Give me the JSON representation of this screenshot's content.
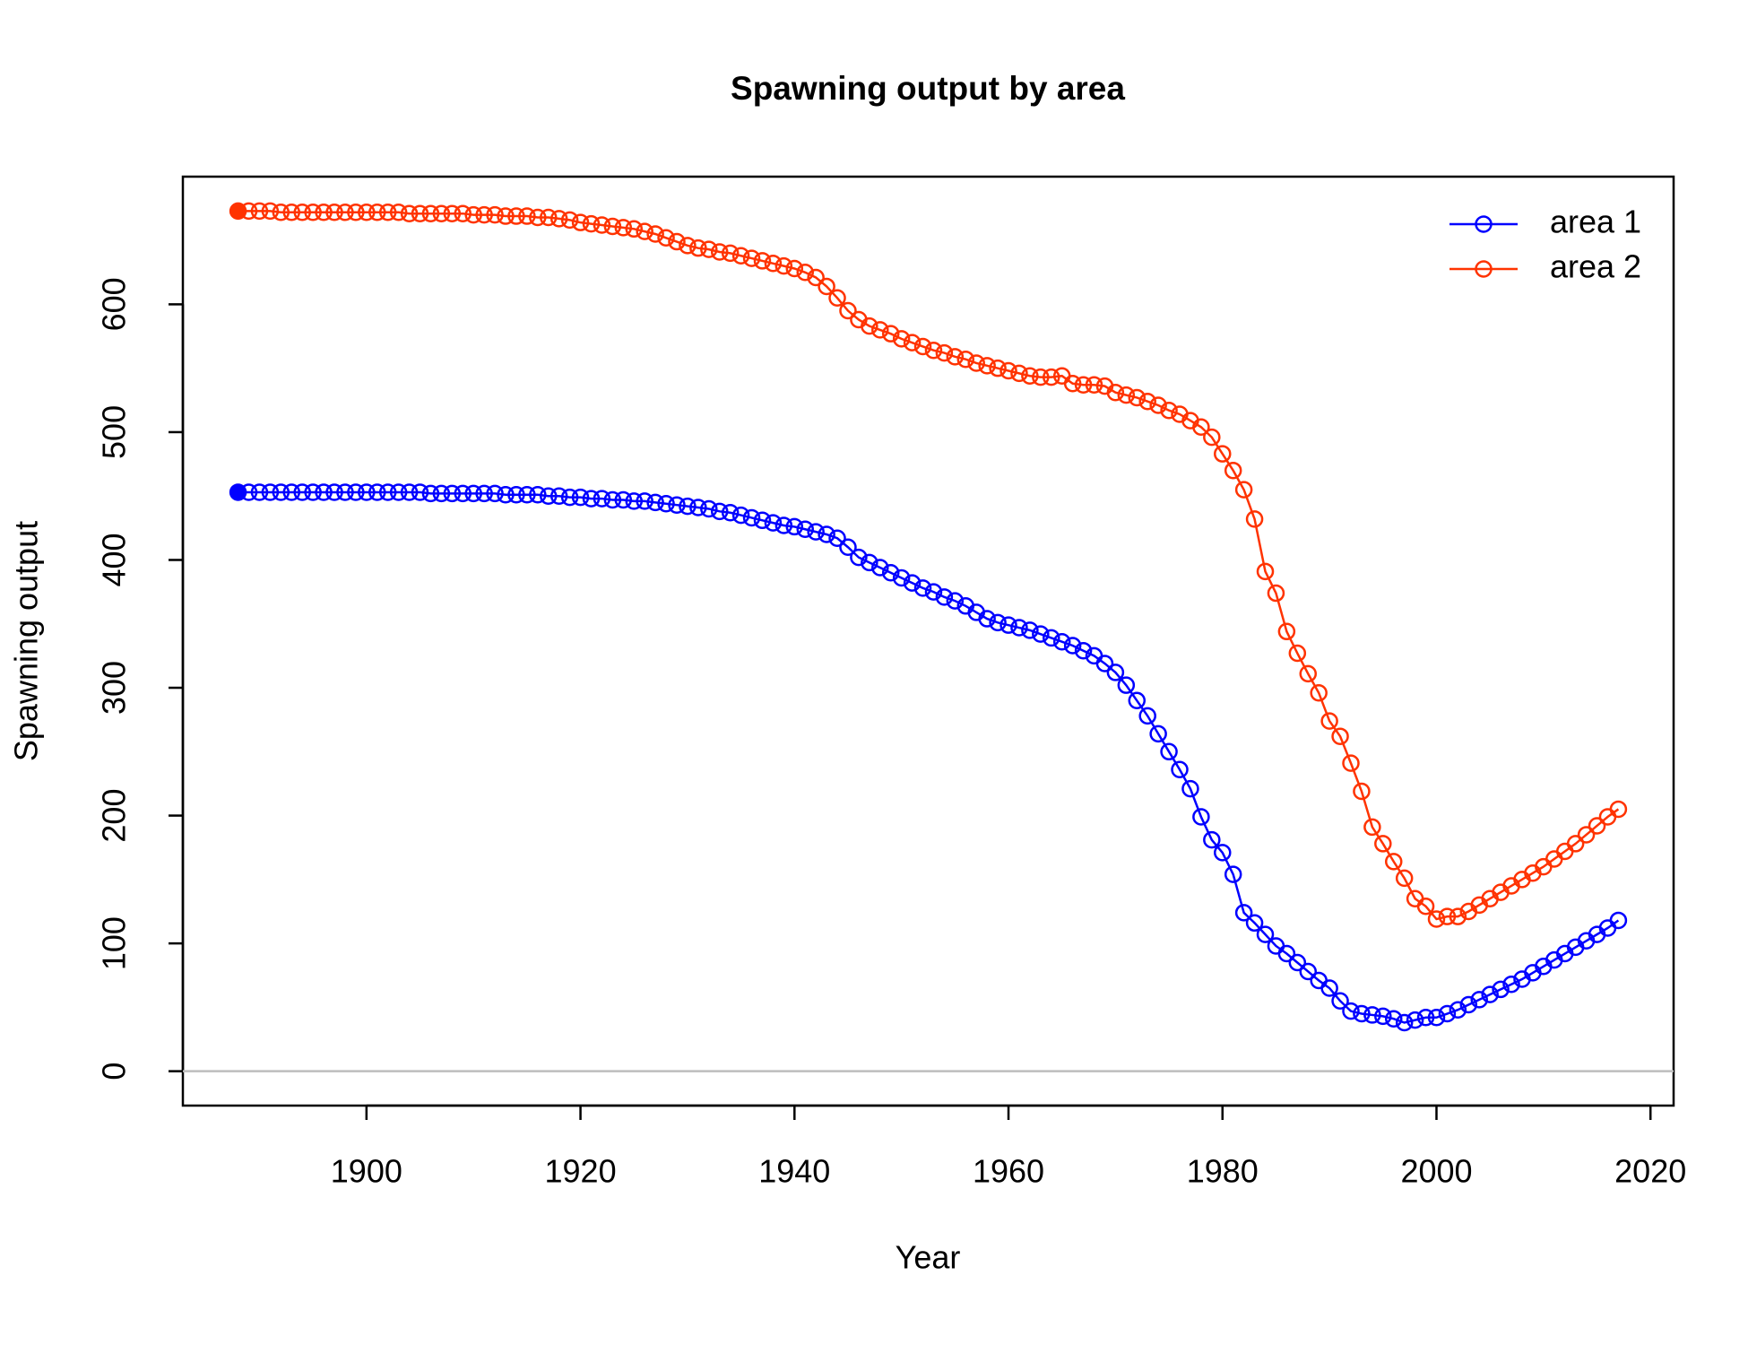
{
  "chart_data": {
    "type": "line",
    "title": "Spawning output by area",
    "x_label": "Year",
    "y_label": "Spawning output",
    "x": [
      1888,
      1889,
      1890,
      1891,
      1892,
      1893,
      1894,
      1895,
      1896,
      1897,
      1898,
      1899,
      1900,
      1901,
      1902,
      1903,
      1904,
      1905,
      1906,
      1907,
      1908,
      1909,
      1910,
      1911,
      1912,
      1913,
      1914,
      1915,
      1916,
      1917,
      1918,
      1919,
      1920,
      1921,
      1922,
      1923,
      1924,
      1925,
      1926,
      1927,
      1928,
      1929,
      1930,
      1931,
      1932,
      1933,
      1934,
      1935,
      1936,
      1937,
      1938,
      1939,
      1940,
      1941,
      1942,
      1943,
      1944,
      1945,
      1946,
      1947,
      1948,
      1949,
      1950,
      1951,
      1952,
      1953,
      1954,
      1955,
      1956,
      1957,
      1958,
      1959,
      1960,
      1961,
      1962,
      1963,
      1964,
      1965,
      1966,
      1967,
      1968,
      1969,
      1970,
      1971,
      1972,
      1973,
      1974,
      1975,
      1976,
      1977,
      1978,
      1979,
      1980,
      1981,
      1982,
      1983,
      1984,
      1985,
      1986,
      1987,
      1988,
      1989,
      1990,
      1991,
      1992,
      1993,
      1994,
      1995,
      1996,
      1997,
      1998,
      1999,
      2000,
      2001,
      2002,
      2003,
      2004,
      2005,
      2006,
      2007,
      2008,
      2009,
      2010,
      2011,
      2012,
      2013,
      2014,
      2015,
      2016,
      2017
    ],
    "series": [
      {
        "name": "area 1",
        "color": "#0000ff",
        "values": [
          453,
          453,
          453,
          453,
          453,
          453,
          453,
          453,
          453,
          453,
          453,
          453,
          453,
          453,
          453,
          453,
          453,
          453,
          452,
          452,
          452,
          452,
          452,
          452,
          452,
          451,
          451,
          451,
          451,
          450,
          450,
          449,
          449,
          448,
          448,
          447,
          447,
          446,
          446,
          445,
          444,
          443,
          442,
          441,
          440,
          438,
          437,
          435,
          433,
          431,
          429,
          427,
          426,
          424,
          422,
          420,
          417,
          410,
          402,
          398,
          394,
          390,
          386,
          382,
          378,
          375,
          371,
          368,
          364,
          359,
          354,
          351,
          349,
          347,
          345,
          342,
          339,
          336,
          333,
          329,
          325,
          319,
          312,
          302,
          290,
          278,
          264,
          250,
          236,
          221,
          199,
          181,
          171,
          154,
          124,
          116,
          107,
          98,
          92,
          85,
          78,
          71,
          65,
          55,
          47,
          45,
          44,
          43,
          41,
          38,
          40,
          42,
          42,
          45,
          48,
          52,
          56,
          60,
          64,
          68,
          72,
          77,
          82,
          87,
          92,
          97,
          102,
          107,
          112,
          118
        ]
      },
      {
        "name": "area 2",
        "color": "#ff3300",
        "values": [
          673,
          673,
          673,
          673,
          672,
          672,
          672,
          672,
          672,
          672,
          672,
          672,
          672,
          672,
          672,
          672,
          671,
          671,
          671,
          671,
          671,
          671,
          670,
          670,
          670,
          669,
          669,
          669,
          668,
          668,
          667,
          666,
          664,
          663,
          662,
          661,
          660,
          659,
          657,
          655,
          652,
          649,
          646,
          644,
          643,
          641,
          640,
          638,
          636,
          634,
          632,
          630,
          628,
          625,
          621,
          614,
          605,
          595,
          588,
          583,
          580,
          577,
          573,
          570,
          567,
          564,
          562,
          559,
          557,
          554,
          552,
          550,
          548,
          546,
          544,
          543,
          543,
          544,
          538,
          537,
          537,
          536,
          531,
          529,
          527,
          524,
          521,
          517,
          514,
          509,
          504,
          496,
          483,
          470,
          455,
          432,
          391,
          374,
          344,
          327,
          311,
          296,
          274,
          262,
          241,
          219,
          191,
          178,
          164,
          151,
          135,
          129,
          119,
          121,
          121,
          125,
          130,
          135,
          140,
          145,
          150,
          155,
          160,
          166,
          172,
          178,
          185,
          192,
          199,
          205
        ]
      }
    ],
    "xlim": [
      1882.84,
      2022.16
    ],
    "ylim": [
      -26.9,
      699.9
    ],
    "xticks": [
      1900,
      1920,
      1940,
      1960,
      1980,
      2000,
      2020
    ],
    "yticks": [
      0,
      100,
      200,
      300,
      400,
      500,
      600
    ],
    "reference_line": 0,
    "reference_line_color": "#bebebe",
    "first_point_filled": true,
    "legend": "topright"
  }
}
